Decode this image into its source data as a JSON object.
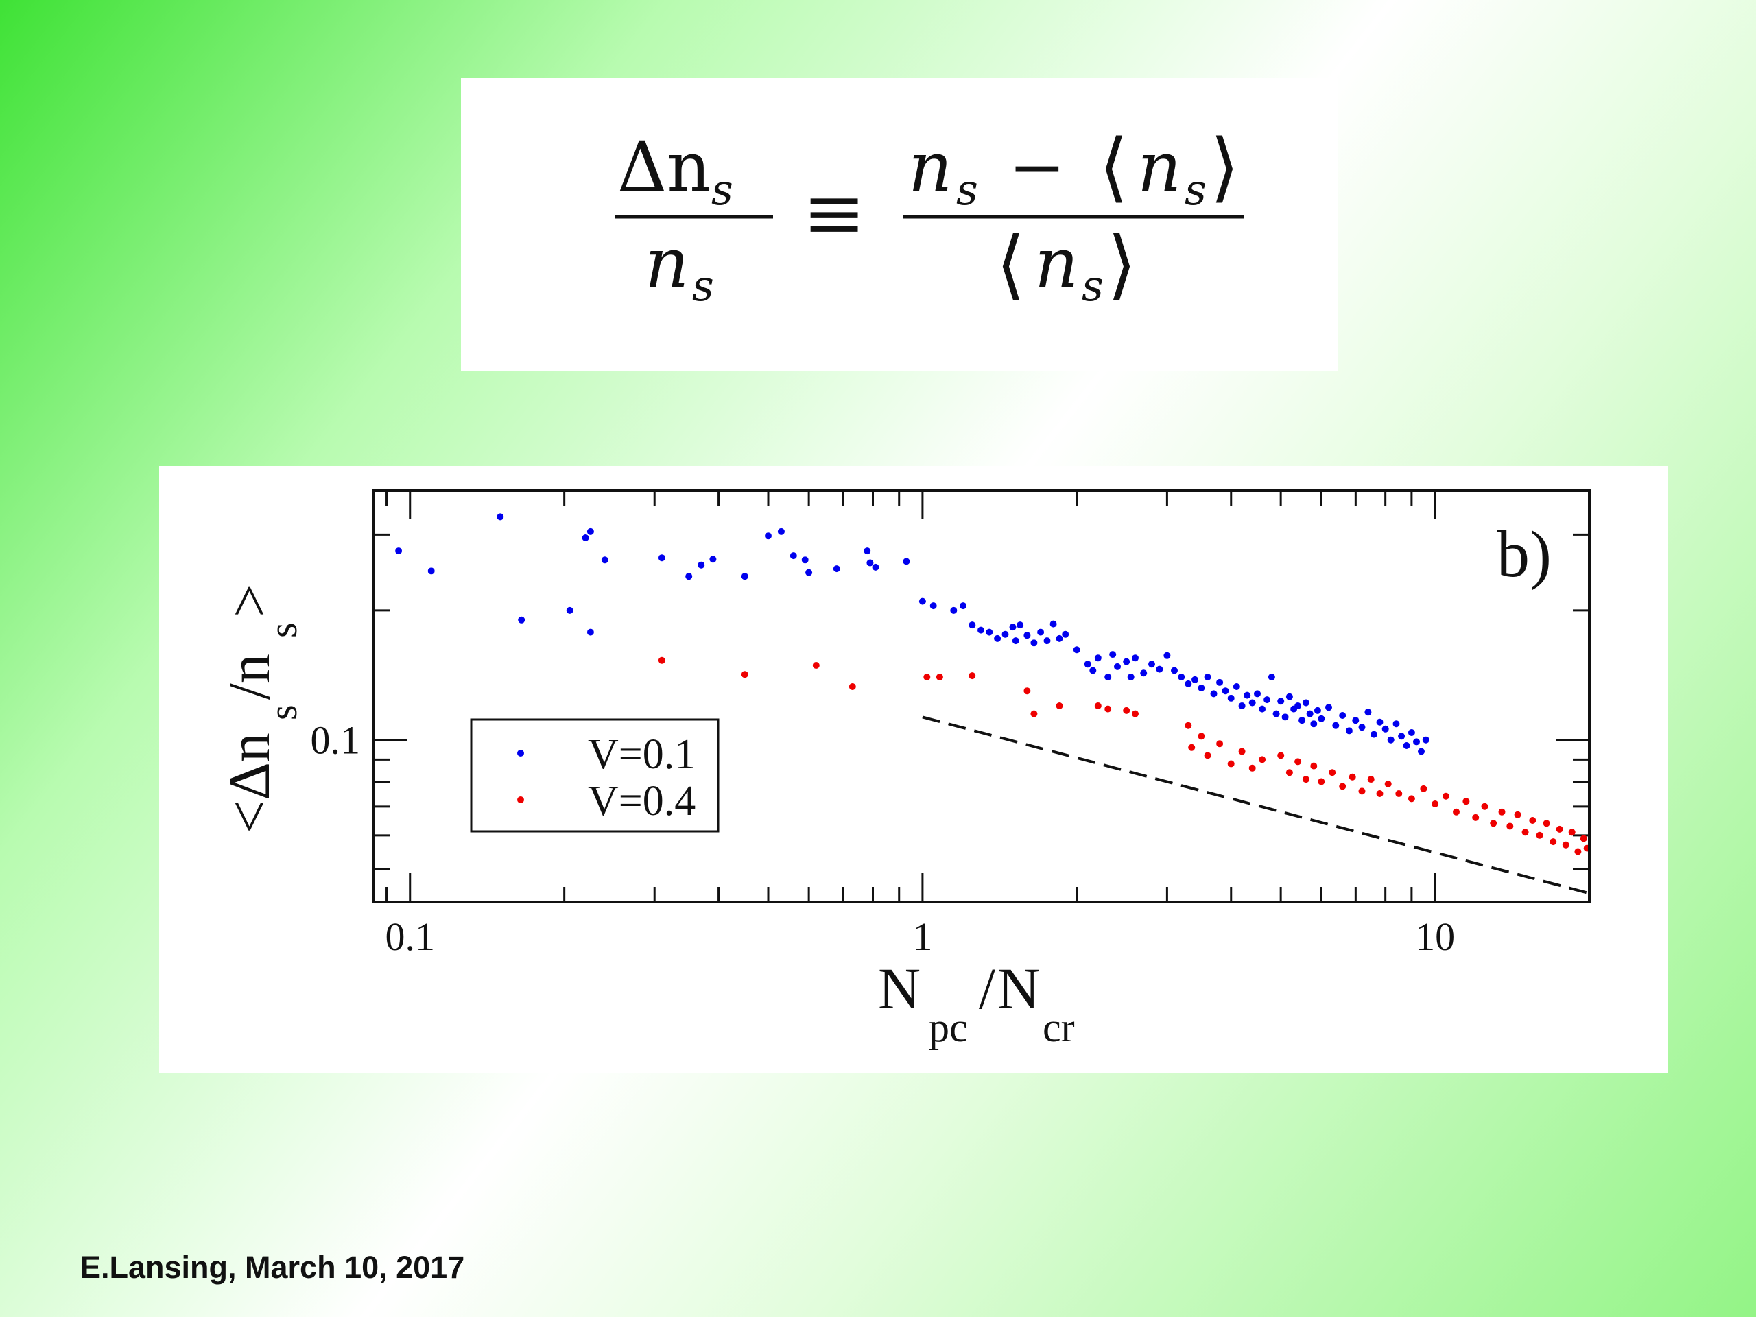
{
  "equation": {
    "lhs_numerator": "Δn",
    "lhs_sub": "s",
    "lhs_denominator": "n",
    "equiv": "≡",
    "rhs_num_a": "n",
    "rhs_minus": "−",
    "rhs_langle": "⟨",
    "rhs_rangle": "⟩",
    "rhs_den": "n"
  },
  "chart_data": {
    "type": "scatter",
    "xscale": "log",
    "yscale": "log",
    "xlim": [
      0.085,
      20
    ],
    "ylim": [
      0.042,
      0.38
    ],
    "xticks": [
      {
        "value": 0.1,
        "label": "0.1"
      },
      {
        "value": 1,
        "label": "1"
      },
      {
        "value": 10,
        "label": "10"
      }
    ],
    "yticks": [
      {
        "value": 0.1,
        "label": "0.1"
      }
    ],
    "xlabel": {
      "main_a": "N",
      "sub_a": "pc",
      "slash": "/",
      "main_b": "N",
      "sub_b": "cr"
    },
    "ylabel": {
      "open": "<Δn",
      "sub_a": "s",
      "mid": "/n",
      "sub_b": "s",
      "close": ">"
    },
    "panel_label": "b)",
    "legend_position": "lower-left",
    "series": [
      {
        "name": "V=0.1",
        "color": "#0000ee",
        "points": [
          [
            0.095,
            0.275
          ],
          [
            0.11,
            0.247
          ],
          [
            0.15,
            0.33
          ],
          [
            0.165,
            0.19
          ],
          [
            0.205,
            0.2
          ],
          [
            0.22,
            0.295
          ],
          [
            0.225,
            0.305
          ],
          [
            0.225,
            0.178
          ],
          [
            0.24,
            0.262
          ],
          [
            0.31,
            0.265
          ],
          [
            0.35,
            0.24
          ],
          [
            0.37,
            0.255
          ],
          [
            0.39,
            0.263
          ],
          [
            0.45,
            0.24
          ],
          [
            0.5,
            0.298
          ],
          [
            0.53,
            0.305
          ],
          [
            0.56,
            0.268
          ],
          [
            0.59,
            0.262
          ],
          [
            0.6,
            0.245
          ],
          [
            0.68,
            0.25
          ],
          [
            0.78,
            0.275
          ],
          [
            0.79,
            0.258
          ],
          [
            0.81,
            0.252
          ],
          [
            0.93,
            0.26
          ],
          [
            1.0,
            0.21
          ],
          [
            1.05,
            0.205
          ],
          [
            1.15,
            0.2
          ],
          [
            1.2,
            0.205
          ],
          [
            1.25,
            0.185
          ],
          [
            1.3,
            0.18
          ],
          [
            1.35,
            0.178
          ],
          [
            1.4,
            0.172
          ],
          [
            1.45,
            0.176
          ],
          [
            1.5,
            0.183
          ],
          [
            1.52,
            0.17
          ],
          [
            1.55,
            0.185
          ],
          [
            1.6,
            0.175
          ],
          [
            1.65,
            0.168
          ],
          [
            1.7,
            0.178
          ],
          [
            1.75,
            0.17
          ],
          [
            1.8,
            0.186
          ],
          [
            1.85,
            0.172
          ],
          [
            1.9,
            0.176
          ],
          [
            2.0,
            0.162
          ],
          [
            2.1,
            0.15
          ],
          [
            2.15,
            0.145
          ],
          [
            2.2,
            0.155
          ],
          [
            2.3,
            0.14
          ],
          [
            2.35,
            0.158
          ],
          [
            2.4,
            0.148
          ],
          [
            2.5,
            0.152
          ],
          [
            2.55,
            0.14
          ],
          [
            2.6,
            0.155
          ],
          [
            2.7,
            0.143
          ],
          [
            2.8,
            0.15
          ],
          [
            2.9,
            0.146
          ],
          [
            3.0,
            0.157
          ],
          [
            3.1,
            0.145
          ],
          [
            3.2,
            0.14
          ],
          [
            3.3,
            0.135
          ],
          [
            3.4,
            0.138
          ],
          [
            3.5,
            0.132
          ],
          [
            3.6,
            0.14
          ],
          [
            3.7,
            0.128
          ],
          [
            3.8,
            0.136
          ],
          [
            3.9,
            0.13
          ],
          [
            4.0,
            0.125
          ],
          [
            4.1,
            0.133
          ],
          [
            4.2,
            0.12
          ],
          [
            4.3,
            0.127
          ],
          [
            4.4,
            0.122
          ],
          [
            4.5,
            0.128
          ],
          [
            4.6,
            0.118
          ],
          [
            4.7,
            0.124
          ],
          [
            4.8,
            0.14
          ],
          [
            4.9,
            0.115
          ],
          [
            5.0,
            0.123
          ],
          [
            5.1,
            0.113
          ],
          [
            5.2,
            0.126
          ],
          [
            5.3,
            0.118
          ],
          [
            5.4,
            0.12
          ],
          [
            5.5,
            0.111
          ],
          [
            5.6,
            0.122
          ],
          [
            5.7,
            0.115
          ],
          [
            5.8,
            0.109
          ],
          [
            5.9,
            0.117
          ],
          [
            6.0,
            0.112
          ],
          [
            6.2,
            0.119
          ],
          [
            6.4,
            0.108
          ],
          [
            6.6,
            0.114
          ],
          [
            6.8,
            0.105
          ],
          [
            7.0,
            0.111
          ],
          [
            7.2,
            0.107
          ],
          [
            7.4,
            0.116
          ],
          [
            7.6,
            0.103
          ],
          [
            7.8,
            0.11
          ],
          [
            8.0,
            0.106
          ],
          [
            8.2,
            0.1
          ],
          [
            8.4,
            0.109
          ],
          [
            8.6,
            0.102
          ],
          [
            8.8,
            0.097
          ],
          [
            9.0,
            0.104
          ],
          [
            9.2,
            0.099
          ],
          [
            9.4,
            0.094
          ],
          [
            9.6,
            0.1
          ]
        ]
      },
      {
        "name": "V=0.4",
        "color": "#ee0000",
        "points": [
          [
            0.31,
            0.153
          ],
          [
            0.45,
            0.142
          ],
          [
            0.62,
            0.149
          ],
          [
            0.73,
            0.133
          ],
          [
            1.02,
            0.14
          ],
          [
            1.08,
            0.14
          ],
          [
            1.25,
            0.141
          ],
          [
            1.6,
            0.13
          ],
          [
            1.65,
            0.115
          ],
          [
            1.85,
            0.12
          ],
          [
            2.2,
            0.12
          ],
          [
            2.3,
            0.118
          ],
          [
            2.5,
            0.117
          ],
          [
            2.6,
            0.115
          ],
          [
            3.3,
            0.108
          ],
          [
            3.35,
            0.096
          ],
          [
            3.5,
            0.102
          ],
          [
            3.6,
            0.092
          ],
          [
            3.8,
            0.098
          ],
          [
            4.0,
            0.088
          ],
          [
            4.2,
            0.094
          ],
          [
            4.4,
            0.086
          ],
          [
            4.6,
            0.09
          ],
          [
            5.0,
            0.092
          ],
          [
            5.2,
            0.084
          ],
          [
            5.4,
            0.089
          ],
          [
            5.6,
            0.081
          ],
          [
            5.8,
            0.087
          ],
          [
            6.0,
            0.08
          ],
          [
            6.3,
            0.084
          ],
          [
            6.6,
            0.078
          ],
          [
            6.9,
            0.082
          ],
          [
            7.2,
            0.076
          ],
          [
            7.5,
            0.081
          ],
          [
            7.8,
            0.075
          ],
          [
            8.1,
            0.079
          ],
          [
            8.5,
            0.075
          ],
          [
            9.0,
            0.073
          ],
          [
            9.5,
            0.077
          ],
          [
            10.0,
            0.071
          ],
          [
            10.5,
            0.074
          ],
          [
            11.0,
            0.068
          ],
          [
            11.5,
            0.072
          ],
          [
            12.0,
            0.066
          ],
          [
            12.5,
            0.07
          ],
          [
            13.0,
            0.064
          ],
          [
            13.5,
            0.068
          ],
          [
            14.0,
            0.063
          ],
          [
            14.5,
            0.067
          ],
          [
            15.0,
            0.061
          ],
          [
            15.5,
            0.065
          ],
          [
            16.0,
            0.06
          ],
          [
            16.5,
            0.064
          ],
          [
            17.0,
            0.058
          ],
          [
            17.5,
            0.062
          ],
          [
            18.0,
            0.057
          ],
          [
            18.5,
            0.061
          ],
          [
            19.0,
            0.055
          ],
          [
            19.5,
            0.059
          ],
          [
            19.8,
            0.056
          ]
        ]
      }
    ],
    "reference_line": {
      "style": "dashed",
      "color": "#111111",
      "from": [
        1.0,
        0.113
      ],
      "to": [
        20.0,
        0.044
      ]
    }
  },
  "footer": "E.Lansing, March 10, 2017"
}
